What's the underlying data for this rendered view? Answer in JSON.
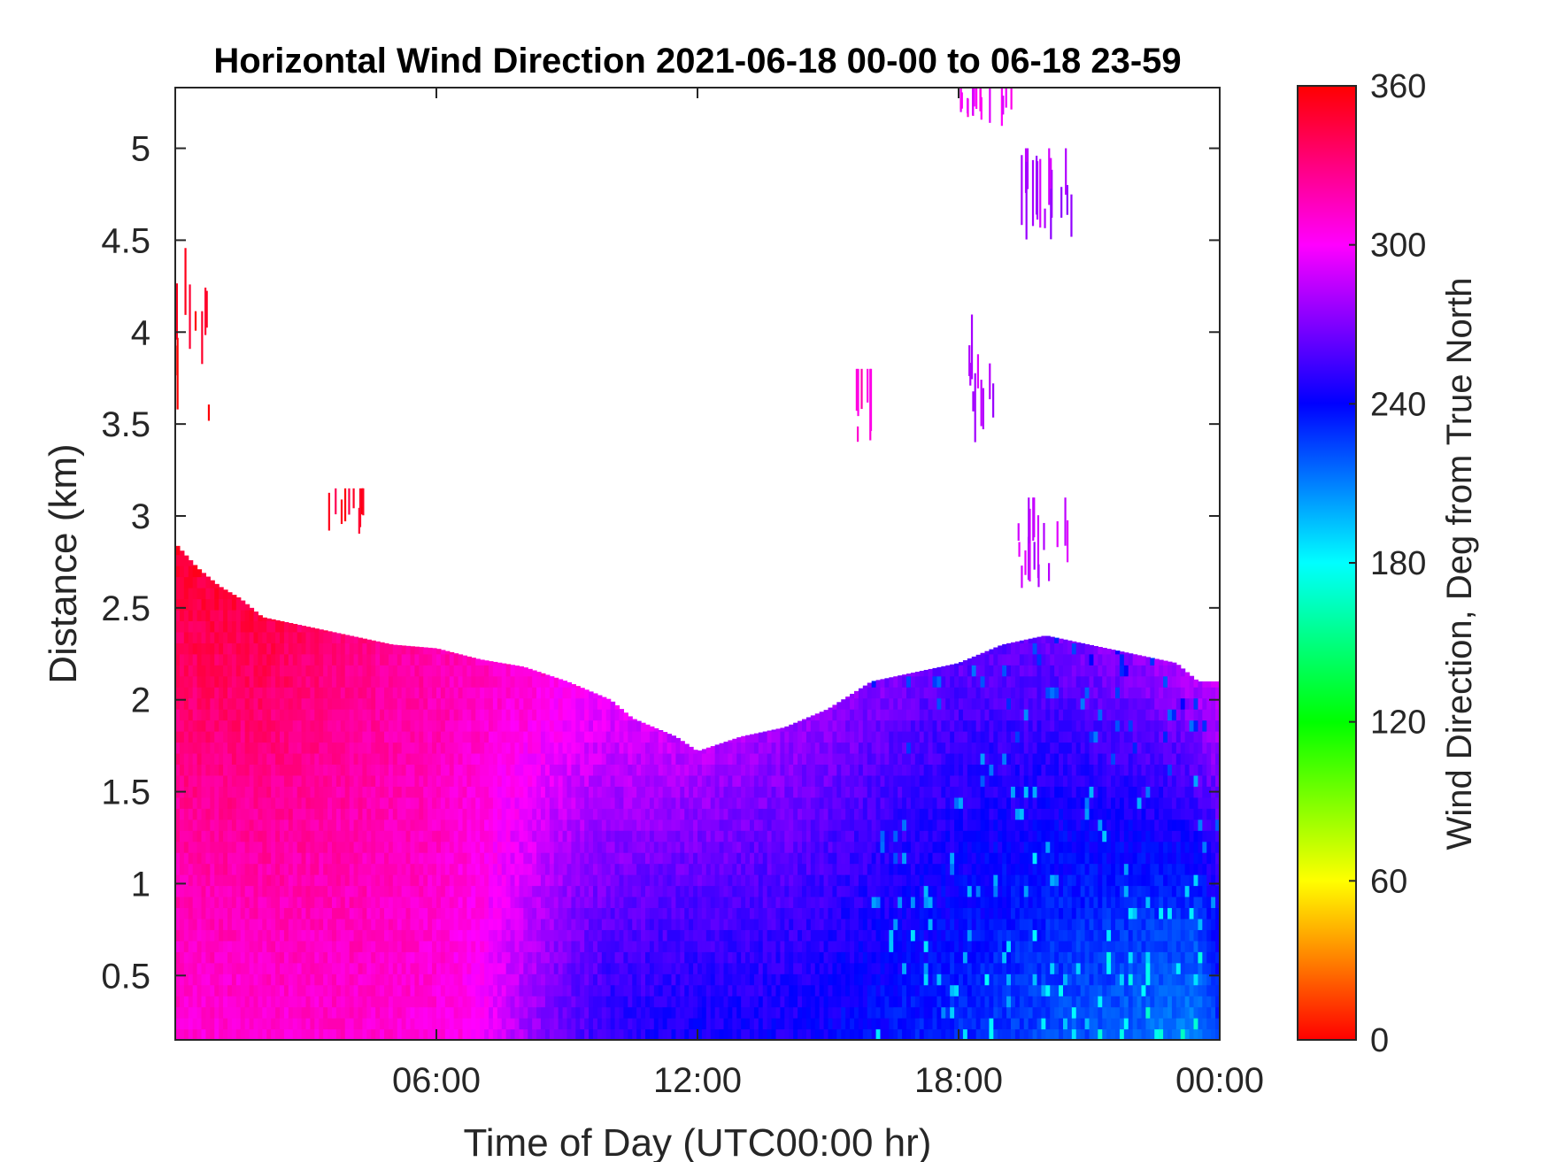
{
  "chart_data": {
    "type": "heatmap",
    "title": "Horizontal Wind Direction 2021-06-18 00-00 to 06-18 23-59",
    "xlabel": "Time of Day (UTC00:00 hr)",
    "ylabel": "Distance (km)",
    "x_unit": "hours",
    "xlim": [
      0,
      24
    ],
    "ylim": [
      0.15,
      5.33
    ],
    "x_ticks": [
      {
        "value": 6,
        "label": "06:00"
      },
      {
        "value": 12,
        "label": "12:00"
      },
      {
        "value": 18,
        "label": "18:00"
      },
      {
        "value": 24,
        "label": "00:00"
      }
    ],
    "y_ticks": [
      {
        "value": 0.5,
        "label": "0.5"
      },
      {
        "value": 1,
        "label": "1"
      },
      {
        "value": 1.5,
        "label": "1.5"
      },
      {
        "value": 2,
        "label": "2"
      },
      {
        "value": 2.5,
        "label": "2.5"
      },
      {
        "value": 3,
        "label": "3"
      },
      {
        "value": 3.5,
        "label": "3.5"
      },
      {
        "value": 4,
        "label": "4"
      },
      {
        "value": 4.5,
        "label": "4.5"
      },
      {
        "value": 5,
        "label": "5"
      }
    ],
    "grid": false,
    "colorbar": {
      "label": "Wind Direction, Deg from True North",
      "range": [
        0,
        360
      ],
      "ticks": [
        {
          "value": 0,
          "label": "0"
        },
        {
          "value": 60,
          "label": "60"
        },
        {
          "value": 120,
          "label": "120"
        },
        {
          "value": 180,
          "label": "180"
        },
        {
          "value": 240,
          "label": "240"
        },
        {
          "value": 300,
          "label": "300"
        },
        {
          "value": 360,
          "label": "360"
        }
      ],
      "colormap": "hsv"
    },
    "data_top_profile": {
      "hours": [
        0,
        0.5,
        1,
        1.5,
        2,
        3,
        4,
        5,
        6,
        7,
        8,
        9,
        10,
        10.5,
        11,
        11.5,
        12,
        13,
        14,
        15,
        16,
        17,
        18,
        19,
        20,
        21,
        22,
        23,
        23.5,
        24
      ],
      "top_km": [
        2.85,
        2.72,
        2.62,
        2.55,
        2.45,
        2.4,
        2.35,
        2.3,
        2.28,
        2.22,
        2.18,
        2.1,
        2.0,
        1.9,
        1.85,
        1.8,
        1.72,
        1.8,
        1.85,
        1.95,
        2.1,
        2.15,
        2.2,
        2.3,
        2.35,
        2.3,
        2.25,
        2.2,
        2.1,
        2.1
      ]
    },
    "direction_profile": {
      "hours": [
        0,
        2,
        4,
        6,
        7,
        8,
        9,
        10,
        12,
        14,
        16,
        18,
        20,
        22,
        23.5,
        24
      ],
      "low_level_deg": [
        310,
        310,
        312,
        308,
        300,
        280,
        262,
        250,
        245,
        245,
        238,
        232,
        225,
        218,
        210,
        230
      ],
      "upper_level_deg": [
        350,
        345,
        330,
        320,
        315,
        312,
        305,
        298,
        285,
        278,
        272,
        262,
        265,
        275,
        285,
        290
      ]
    },
    "sparse_patches": [
      {
        "x0": 0,
        "x1": 0.8,
        "y0": 3.5,
        "y1": 4.5,
        "deg": 355
      },
      {
        "x0": 3.5,
        "x1": 4.3,
        "y0": 2.9,
        "y1": 3.15,
        "deg": 350
      },
      {
        "x0": 15.6,
        "x1": 16.1,
        "y0": 3.4,
        "y1": 3.8,
        "deg": 315
      },
      {
        "x0": 18.2,
        "x1": 18.9,
        "y0": 3.3,
        "y1": 4.1,
        "deg": 285
      },
      {
        "x0": 19.4,
        "x1": 20.6,
        "y0": 4.5,
        "y1": 5.0,
        "deg": 282
      },
      {
        "x0": 19.3,
        "x1": 20.5,
        "y0": 2.6,
        "y1": 3.1,
        "deg": 285
      },
      {
        "x0": 18.0,
        "x1": 19.2,
        "y0": 5.12,
        "y1": 5.33,
        "deg": 300
      }
    ]
  }
}
